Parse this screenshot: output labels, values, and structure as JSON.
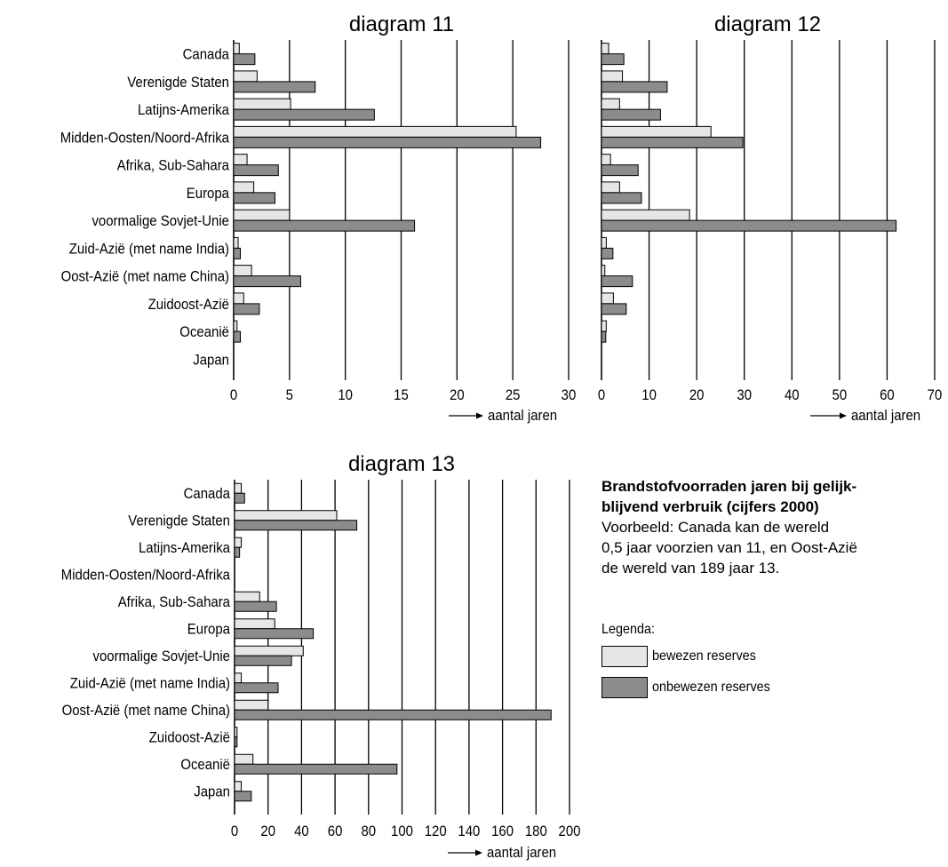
{
  "colors": {
    "proven": "#e6e6e6",
    "unproven": "#8c8c8c",
    "grid": "#000000"
  },
  "axis_arrow_label": "aantal jaren",
  "chart_data": [
    {
      "type": "bar",
      "title": "diagram 11",
      "categories": [
        "Canada",
        "Verenigde Staten",
        "Latijns-Amerika",
        "Midden-Oosten/Noord-Afrika",
        "Afrika, Sub-Sahara",
        "Europa",
        "voormalige Sovjet-Unie",
        "Zuid-Azië (met name India)",
        "Oost-Azië (met name China)",
        "Zuidoost-Azië",
        "Oceanië",
        "Japan"
      ],
      "series": [
        {
          "name": "bewezen reserves",
          "values": [
            0.5,
            2.1,
            5.1,
            25.3,
            1.2,
            1.8,
            5.0,
            0.4,
            1.6,
            0.9,
            0.3,
            0
          ]
        },
        {
          "name": "onbewezen reserves",
          "values": [
            1.9,
            7.3,
            12.6,
            27.5,
            4.0,
            3.7,
            16.2,
            0.6,
            6.0,
            2.3,
            0.6,
            0
          ]
        }
      ],
      "xlim": [
        0,
        30
      ],
      "xticks": [
        0,
        5,
        10,
        15,
        20,
        25,
        30
      ],
      "xlabel": "aantal jaren",
      "grid": true
    },
    {
      "type": "bar",
      "title": "diagram 12",
      "categories": [
        "Canada",
        "Verenigde Staten",
        "Latijns-Amerika",
        "Midden-Oosten/Noord-Afrika",
        "Afrika, Sub-Sahara",
        "Europa",
        "voormalige Sovjet-Unie",
        "Zuid-Azië (met name India)",
        "Oost-Azië (met name China)",
        "Zuidoost-Azië",
        "Oceanië",
        "Japan"
      ],
      "series": [
        {
          "name": "bewezen reserves",
          "values": [
            1.5,
            4.4,
            3.8,
            23.0,
            1.9,
            3.8,
            18.5,
            1.0,
            0.7,
            2.5,
            1.0,
            0
          ]
        },
        {
          "name": "onbewezen reserves",
          "values": [
            4.7,
            13.8,
            12.4,
            29.7,
            7.7,
            8.4,
            61.9,
            2.4,
            6.5,
            5.2,
            0.9,
            0
          ]
        }
      ],
      "xlim": [
        0,
        70
      ],
      "xticks": [
        0,
        10,
        20,
        30,
        40,
        50,
        60,
        70
      ],
      "xlabel": "aantal jaren",
      "grid": true
    },
    {
      "type": "bar",
      "title": "diagram 13",
      "categories": [
        "Canada",
        "Verenigde Staten",
        "Latijns-Amerika",
        "Midden-Oosten/Noord-Afrika",
        "Afrika, Sub-Sahara",
        "Europa",
        "voormalige Sovjet-Unie",
        "Zuid-Azië (met name India)",
        "Oost-Azië (met name China)",
        "Zuidoost-Azië",
        "Oceanië",
        "Japan"
      ],
      "series": [
        {
          "name": "bewezen reserves",
          "values": [
            4,
            61,
            4,
            0,
            15,
            24,
            41,
            4,
            20,
            1.5,
            11,
            4
          ]
        },
        {
          "name": "onbewezen reserves",
          "values": [
            6,
            73,
            3,
            0,
            25,
            47,
            34,
            26,
            189,
            1.5,
            97,
            10
          ]
        }
      ],
      "xlim": [
        0,
        200
      ],
      "xticks": [
        0,
        20,
        40,
        60,
        80,
        100,
        120,
        140,
        160,
        180,
        200
      ],
      "xlabel": "aantal jaren",
      "grid": true
    }
  ],
  "annotation": {
    "title": "Brandstofvoorraden jaren bij gelijk-\nblijvend verbruik (cijfers 2000)",
    "text": "Voorbeeld: Canada kan de wereld\n0,5 jaar voorzien van 11, en Oost-Azië\nde wereld van 189 jaar 13."
  },
  "legend": {
    "title": "Legenda:",
    "items": [
      {
        "label": "bewezen reserves",
        "color": "#e6e6e6"
      },
      {
        "label": "onbewezen reserves",
        "color": "#8c8c8c"
      }
    ]
  }
}
